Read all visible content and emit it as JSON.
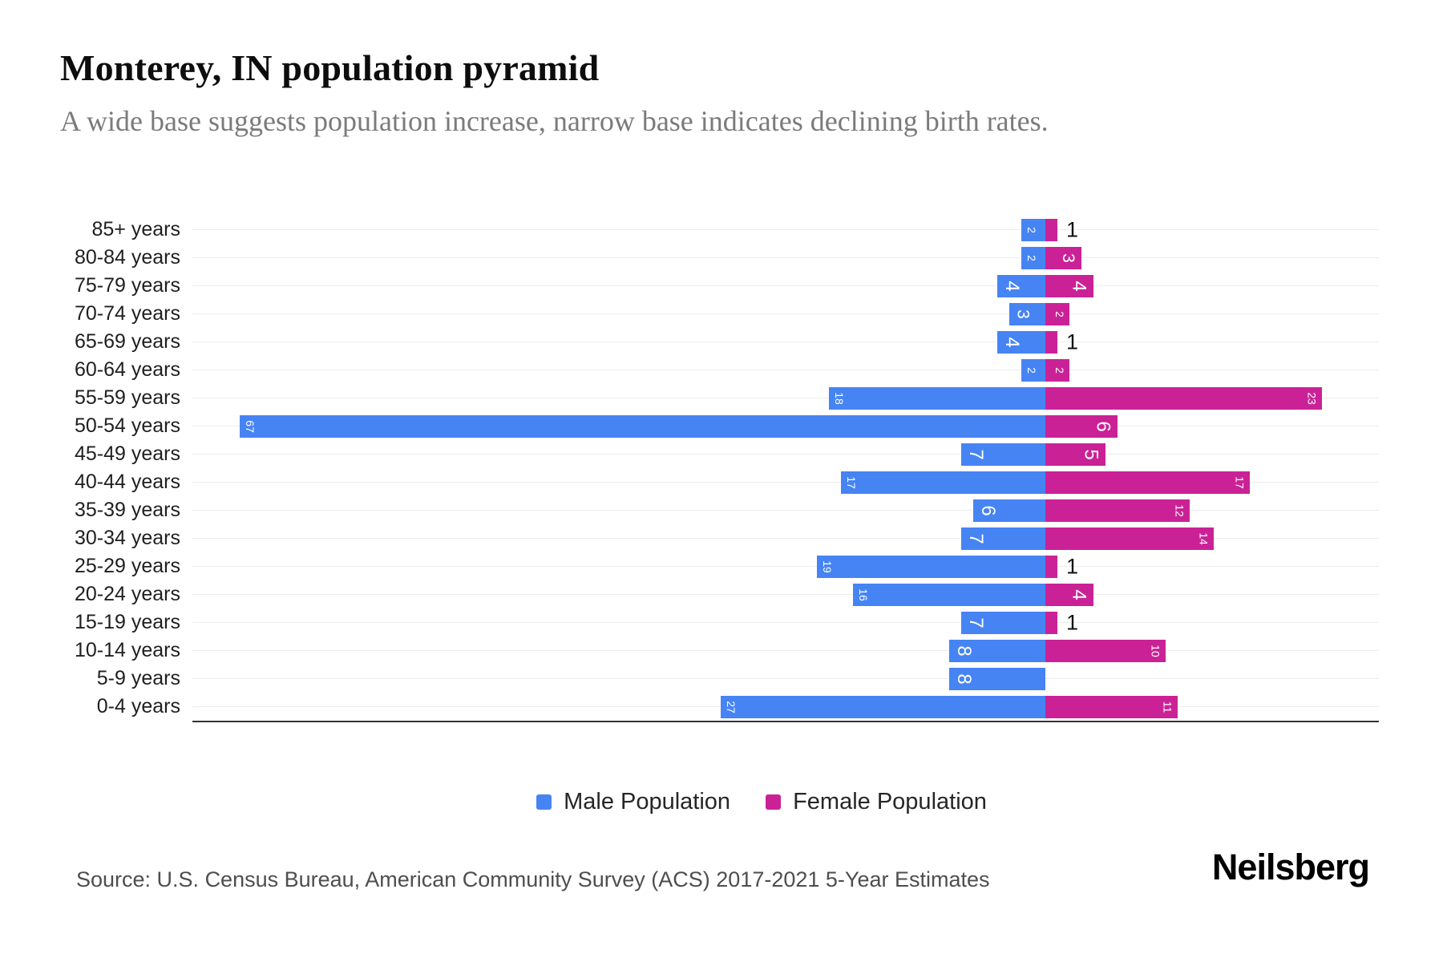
{
  "title": "Monterey, IN population pyramid",
  "subtitle": "A wide base suggests population increase, narrow base indicates declining birth rates.",
  "legend": {
    "male_label": "Male Population",
    "female_label": "Female Population"
  },
  "footer": {
    "source": "Source: U.S. Census Bureau, American Community Survey (ACS) 2017-2021 5-Year Estimates",
    "brand": "Neilsberg"
  },
  "colors": {
    "male": "#4684f3",
    "female": "#ca2296",
    "gridline": "#ececec",
    "axis_line": "#333333",
    "bar_value_inside": "#ffffff",
    "bar_value_outside": "#111111"
  },
  "chart_data": {
    "type": "bar",
    "subtype": "population-pyramid",
    "orientation": "horizontal",
    "grid": true,
    "xlim": [
      -71,
      28
    ],
    "categories": [
      "85+ years",
      "80-84 years",
      "75-79 years",
      "70-74 years",
      "65-69 years",
      "60-64 years",
      "55-59 years",
      "50-54 years",
      "45-49 years",
      "40-44 years",
      "35-39 years",
      "30-34 years",
      "25-29 years",
      "20-24 years",
      "15-19 years",
      "10-14 years",
      "5-9 years",
      "0-4 years"
    ],
    "series": [
      {
        "name": "Male Population",
        "side": "left",
        "color": "#4684f3",
        "values": [
          2,
          2,
          4,
          3,
          4,
          2,
          18,
          67,
          7,
          17,
          6,
          7,
          19,
          16,
          7,
          8,
          8,
          27
        ]
      },
      {
        "name": "Female Population",
        "side": "right",
        "color": "#ca2296",
        "values": [
          1,
          3,
          4,
          2,
          1,
          2,
          23,
          6,
          5,
          17,
          12,
          14,
          1,
          4,
          1,
          10,
          0,
          11
        ]
      }
    ]
  }
}
